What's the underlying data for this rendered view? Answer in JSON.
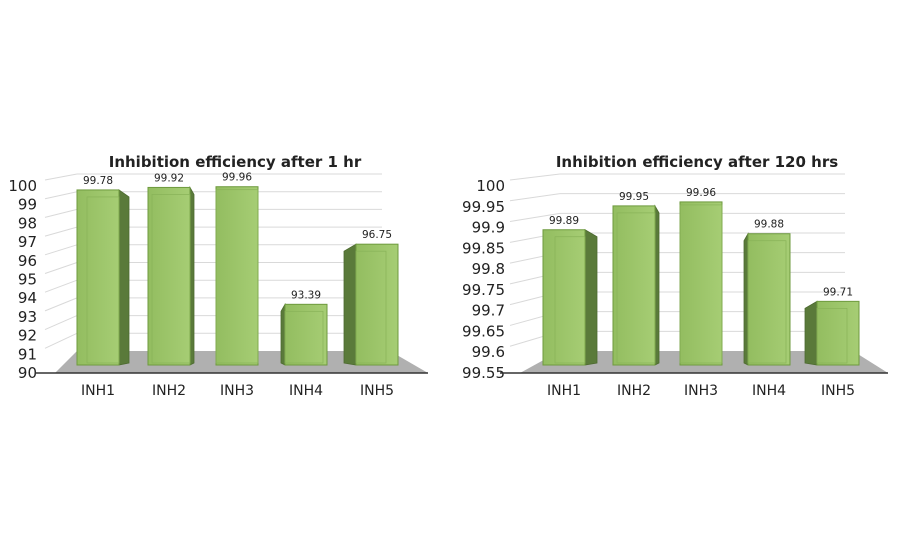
{
  "chart_data": [
    {
      "type": "bar",
      "title": "Inhibition efficiency after 1 hr",
      "categories": [
        "INH1",
        "INH2",
        "INH3",
        "INH4",
        "INH5"
      ],
      "values": [
        99.78,
        99.92,
        99.96,
        93.39,
        96.75
      ],
      "value_labels": [
        "99.78",
        "99.92",
        "99.96",
        "93.39",
        "96.75"
      ],
      "yticks": [
        "90",
        "91",
        "92",
        "93",
        "94",
        "95",
        "96",
        "97",
        "98",
        "99",
        "100"
      ],
      "ylim": [
        90,
        100
      ],
      "xlabel": "",
      "ylabel": "",
      "grid": true,
      "legend": "none",
      "style": "3d"
    },
    {
      "type": "bar",
      "title": "Inhibition efficiency after 120 hrs",
      "categories": [
        "INH1",
        "INH2",
        "INH3",
        "INH4",
        "INH5"
      ],
      "values": [
        99.89,
        99.95,
        99.96,
        99.88,
        99.71
      ],
      "value_labels": [
        "99.89",
        "99.95",
        "99.96",
        "99.88",
        "99.71"
      ],
      "yticks": [
        "99.55",
        "99.6",
        "99.65",
        "99.7",
        "99.75",
        "99.8",
        "99.85",
        "99.9",
        "99.95",
        "100"
      ],
      "ylim": [
        99.55,
        100
      ],
      "xlabel": "",
      "ylabel": "",
      "grid": true,
      "legend": "none",
      "style": "3d"
    }
  ],
  "colors": {
    "front": "#9cc46a",
    "front_light": "#a9d07a",
    "side": "#5a7a3a",
    "edge": "#6e9a3e",
    "floor": "#b0b0b0",
    "grid": "#d9d9d9"
  }
}
